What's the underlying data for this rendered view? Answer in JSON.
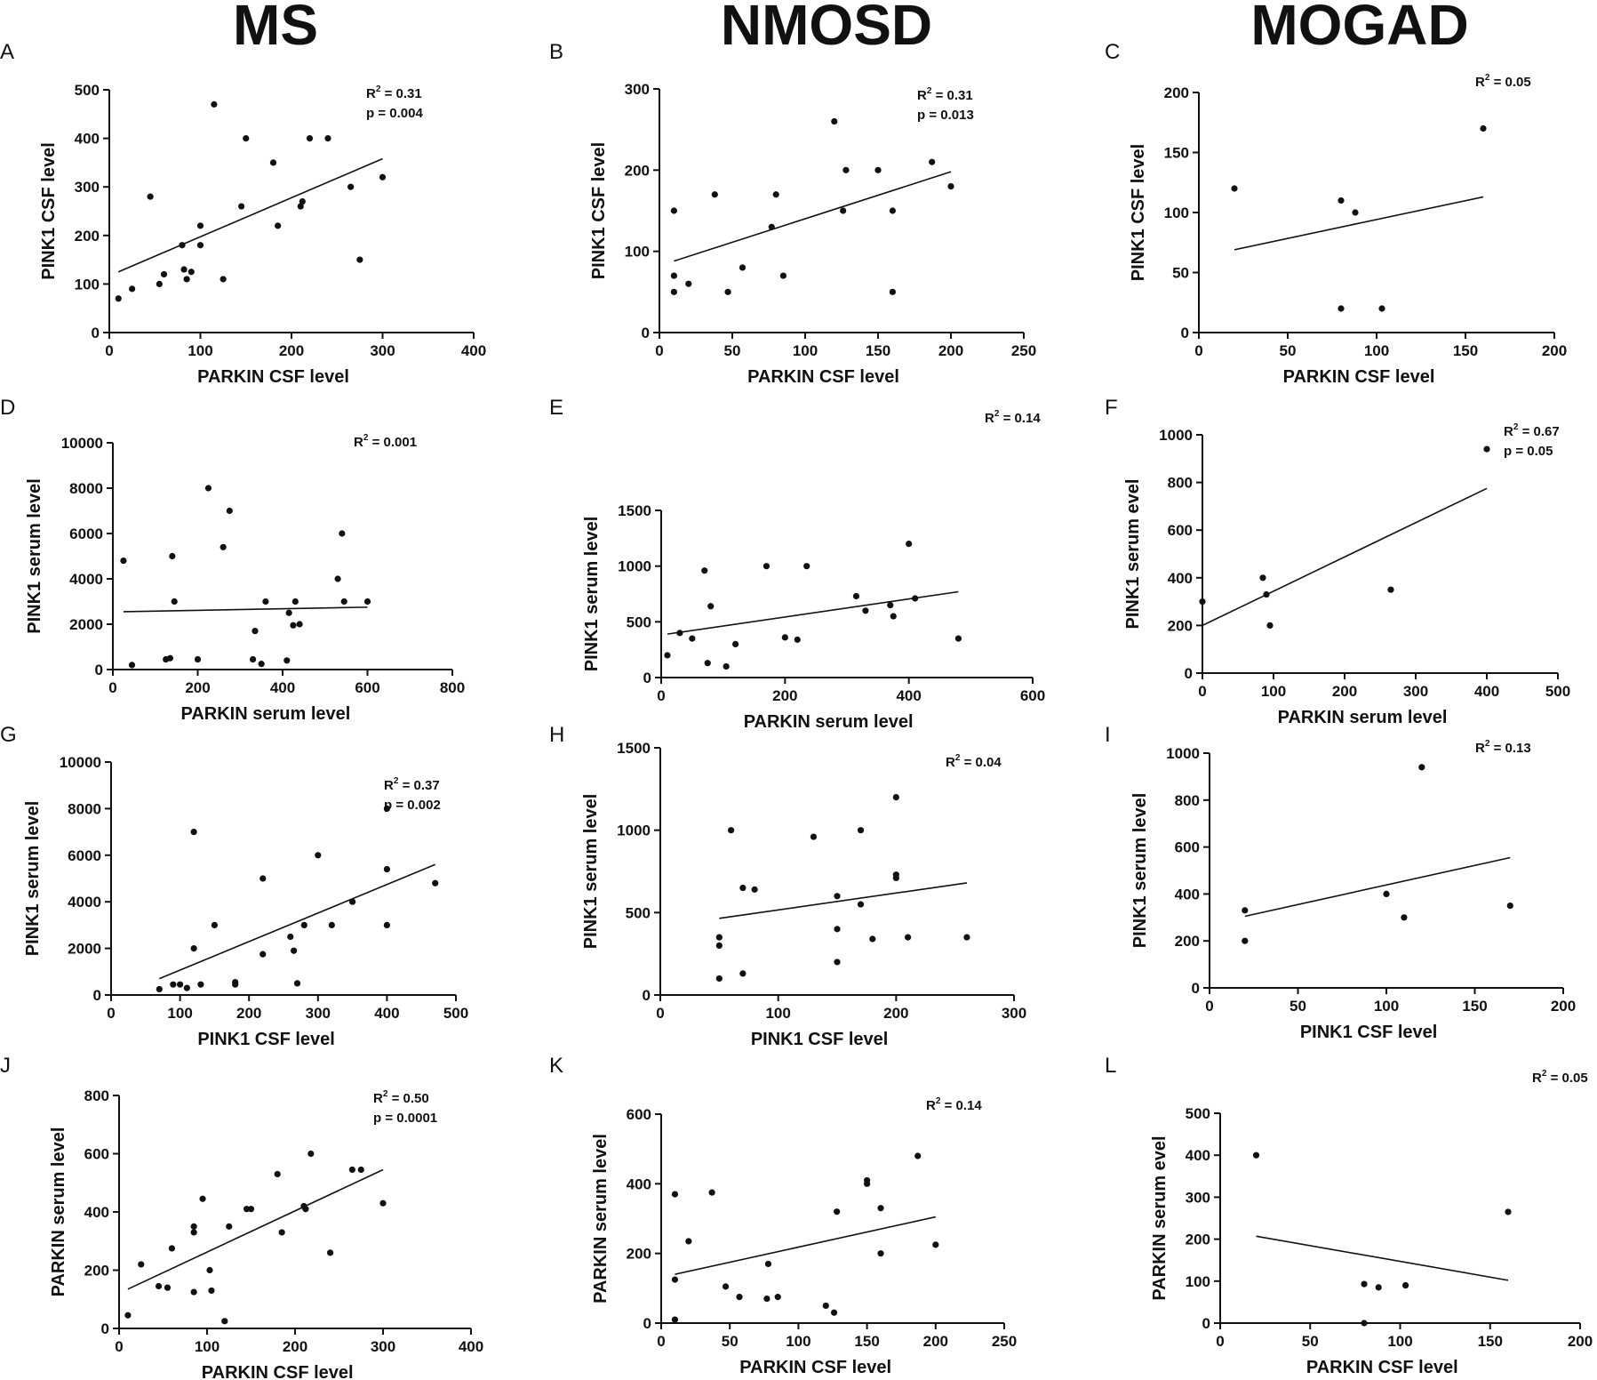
{
  "column_titles": [
    "MS",
    "NMOSD",
    "MOGAD"
  ],
  "chart_data": [
    {
      "id": "A",
      "type": "scatter",
      "xlabel": "PARKIN CSF level",
      "ylabel": "PINK1 CSF level",
      "xlim": [
        0,
        400
      ],
      "ylim": [
        0,
        500
      ],
      "xticks": [
        0,
        100,
        200,
        300,
        400
      ],
      "yticks": [
        0,
        100,
        200,
        300,
        400,
        500
      ],
      "stats": [
        "R2 = 0.31",
        "p = 0.004"
      ],
      "fit": [
        [
          10,
          125
        ],
        [
          300,
          358
        ]
      ],
      "points": [
        [
          10,
          70
        ],
        [
          25,
          90
        ],
        [
          45,
          280
        ],
        [
          55,
          100
        ],
        [
          60,
          120
        ],
        [
          80,
          180
        ],
        [
          82,
          130
        ],
        [
          85,
          110
        ],
        [
          90,
          125
        ],
        [
          100,
          180
        ],
        [
          100,
          220
        ],
        [
          115,
          470
        ],
        [
          125,
          110
        ],
        [
          145,
          260
        ],
        [
          150,
          400
        ],
        [
          180,
          350
        ],
        [
          185,
          220
        ],
        [
          210,
          260
        ],
        [
          212,
          270
        ],
        [
          220,
          400
        ],
        [
          240,
          400
        ],
        [
          265,
          300
        ],
        [
          275,
          150
        ],
        [
          300,
          320
        ]
      ]
    },
    {
      "id": "B",
      "type": "scatter",
      "xlabel": "PARKIN CSF level",
      "ylabel": "PINK1 CSF level",
      "xlim": [
        0,
        250
      ],
      "ylim": [
        0,
        300
      ],
      "xticks": [
        0,
        50,
        100,
        150,
        200,
        250
      ],
      "yticks": [
        0,
        100,
        200,
        300
      ],
      "stats": [
        "R2 = 0.31",
        "p = 0.013"
      ],
      "fit": [
        [
          10,
          88
        ],
        [
          200,
          198
        ]
      ],
      "points": [
        [
          10,
          50
        ],
        [
          10,
          70
        ],
        [
          10,
          150
        ],
        [
          20,
          60
        ],
        [
          38,
          170
        ],
        [
          47,
          50
        ],
        [
          57,
          80
        ],
        [
          77,
          130
        ],
        [
          80,
          170
        ],
        [
          85,
          70
        ],
        [
          120,
          260
        ],
        [
          126,
          150
        ],
        [
          128,
          200
        ],
        [
          150,
          200
        ],
        [
          160,
          50
        ],
        [
          160,
          150
        ],
        [
          187,
          210
        ],
        [
          200,
          180
        ]
      ]
    },
    {
      "id": "C",
      "type": "scatter",
      "xlabel": "PARKIN CSF level",
      "ylabel": "PINK1 CSF level",
      "xlim": [
        0,
        200
      ],
      "ylim": [
        0,
        200
      ],
      "xticks": [
        0,
        50,
        100,
        150,
        200
      ],
      "yticks": [
        0,
        50,
        100,
        150,
        200
      ],
      "stats": [
        "R2 = 0.05"
      ],
      "fit": [
        [
          20,
          69
        ],
        [
          160,
          113
        ]
      ],
      "points": [
        [
          20,
          120
        ],
        [
          80,
          110
        ],
        [
          80,
          20
        ],
        [
          88,
          100
        ],
        [
          103,
          20
        ],
        [
          160,
          170
        ]
      ]
    },
    {
      "id": "D",
      "type": "scatter",
      "xlabel": "PARKIN serum level",
      "ylabel": "PINK1 serum level",
      "xlim": [
        0,
        800
      ],
      "ylim": [
        0,
        10000
      ],
      "xticks": [
        0,
        200,
        400,
        600,
        800
      ],
      "yticks": [
        0,
        2000,
        4000,
        6000,
        8000,
        10000
      ],
      "stats": [
        "R2 = 0.001"
      ],
      "fit": [
        [
          25,
          2550
        ],
        [
          600,
          2750
        ]
      ],
      "points": [
        [
          25,
          4800
        ],
        [
          45,
          200
        ],
        [
          125,
          450
        ],
        [
          135,
          500
        ],
        [
          140,
          5000
        ],
        [
          145,
          3000
        ],
        [
          200,
          450
        ],
        [
          225,
          8000
        ],
        [
          260,
          5400
        ],
        [
          275,
          7000
        ],
        [
          330,
          450
        ],
        [
          335,
          1700
        ],
        [
          350,
          250
        ],
        [
          360,
          3000
        ],
        [
          410,
          400
        ],
        [
          415,
          2500
        ],
        [
          425,
          1950
        ],
        [
          430,
          3000
        ],
        [
          440,
          2000
        ],
        [
          530,
          4000
        ],
        [
          540,
          6000
        ],
        [
          545,
          3000
        ],
        [
          600,
          3000
        ]
      ]
    },
    {
      "id": "E",
      "type": "scatter",
      "xlabel": "PARKIN serum level",
      "ylabel": "PINK1 serum level",
      "xlim": [
        0,
        600
      ],
      "ylim": [
        0,
        1500
      ],
      "xticks": [
        0,
        200,
        400,
        600
      ],
      "yticks": [
        0,
        500,
        1000,
        1500
      ],
      "stats": [
        "R2 = 0.14"
      ],
      "fit": [
        [
          10,
          390
        ],
        [
          480,
          770
        ]
      ],
      "points": [
        [
          10,
          200
        ],
        [
          30,
          400
        ],
        [
          50,
          350
        ],
        [
          70,
          960
        ],
        [
          75,
          130
        ],
        [
          80,
          640
        ],
        [
          105,
          100
        ],
        [
          120,
          300
        ],
        [
          170,
          1000
        ],
        [
          200,
          360
        ],
        [
          220,
          340
        ],
        [
          235,
          1000
        ],
        [
          315,
          730
        ],
        [
          330,
          600
        ],
        [
          370,
          650
        ],
        [
          375,
          550
        ],
        [
          400,
          1200
        ],
        [
          410,
          710
        ],
        [
          480,
          350
        ]
      ]
    },
    {
      "id": "F",
      "type": "scatter",
      "xlabel": "PARKIN serum level",
      "ylabel": "PINK1 serum evel",
      "xlim": [
        0,
        500
      ],
      "ylim": [
        0,
        1000
      ],
      "xticks": [
        0,
        100,
        200,
        300,
        400,
        500
      ],
      "yticks": [
        0,
        200,
        400,
        600,
        800,
        1000
      ],
      "stats": [
        "R2 = 0.67",
        "p = 0.05"
      ],
      "fit": [
        [
          0,
          200
        ],
        [
          400,
          775
        ]
      ],
      "points": [
        [
          0,
          300
        ],
        [
          85,
          400
        ],
        [
          90,
          330
        ],
        [
          95,
          200
        ],
        [
          265,
          350
        ],
        [
          400,
          940
        ]
      ]
    },
    {
      "id": "G",
      "type": "scatter",
      "xlabel": "PINK1 CSF level",
      "ylabel": "PINK1 serum level",
      "xlim": [
        0,
        500
      ],
      "ylim": [
        0,
        10000
      ],
      "xticks": [
        0,
        100,
        200,
        300,
        400,
        500
      ],
      "yticks": [
        0,
        2000,
        4000,
        6000,
        8000,
        10000
      ],
      "stats": [
        "R2 = 0.37",
        "p = 0.002"
      ],
      "fit": [
        [
          70,
          700
        ],
        [
          470,
          5600
        ]
      ],
      "points": [
        [
          70,
          250
        ],
        [
          90,
          450
        ],
        [
          100,
          450
        ],
        [
          110,
          300
        ],
        [
          120,
          2000
        ],
        [
          120,
          7000
        ],
        [
          130,
          450
        ],
        [
          150,
          3000
        ],
        [
          180,
          450
        ],
        [
          180,
          550
        ],
        [
          220,
          1750
        ],
        [
          220,
          5000
        ],
        [
          260,
          2500
        ],
        [
          265,
          1900
        ],
        [
          270,
          500
        ],
        [
          280,
          3000
        ],
        [
          300,
          6000
        ],
        [
          320,
          3000
        ],
        [
          350,
          4000
        ],
        [
          400,
          8000
        ],
        [
          400,
          5400
        ],
        [
          400,
          3000
        ],
        [
          470,
          4800
        ]
      ]
    },
    {
      "id": "H",
      "type": "scatter",
      "xlabel": "PINK1 CSF level",
      "ylabel": "PINK1 serum level",
      "xlim": [
        0,
        300
      ],
      "ylim": [
        0,
        1500
      ],
      "xticks": [
        0,
        100,
        200,
        300
      ],
      "yticks": [
        0,
        500,
        1000,
        1500
      ],
      "stats": [
        "R2 = 0.04"
      ],
      "fit": [
        [
          50,
          465
        ],
        [
          260,
          680
        ]
      ],
      "points": [
        [
          50,
          100
        ],
        [
          50,
          300
        ],
        [
          50,
          350
        ],
        [
          60,
          1000
        ],
        [
          70,
          130
        ],
        [
          70,
          650
        ],
        [
          80,
          640
        ],
        [
          130,
          960
        ],
        [
          150,
          200
        ],
        [
          150,
          400
        ],
        [
          150,
          600
        ],
        [
          170,
          550
        ],
        [
          170,
          1000
        ],
        [
          180,
          340
        ],
        [
          200,
          1200
        ],
        [
          200,
          710
        ],
        [
          200,
          730
        ],
        [
          210,
          350
        ],
        [
          260,
          350
        ]
      ]
    },
    {
      "id": "I",
      "type": "scatter",
      "xlabel": "PINK1 CSF level",
      "ylabel": "PINK1 serum level",
      "xlim": [
        0,
        200
      ],
      "ylim": [
        0,
        1000
      ],
      "xticks": [
        0,
        50,
        100,
        150,
        200
      ],
      "yticks": [
        0,
        200,
        400,
        600,
        800,
        1000
      ],
      "stats": [
        "R2 = 0.13"
      ],
      "fit": [
        [
          20,
          305
        ],
        [
          170,
          555
        ]
      ],
      "points": [
        [
          20,
          200
        ],
        [
          20,
          330
        ],
        [
          100,
          400
        ],
        [
          110,
          300
        ],
        [
          120,
          940
        ],
        [
          170,
          350
        ]
      ]
    },
    {
      "id": "J",
      "type": "scatter",
      "xlabel": "PARKIN CSF level",
      "ylabel": "PARKIN serum level",
      "xlim": [
        0,
        400
      ],
      "ylim": [
        0,
        800
      ],
      "xticks": [
        0,
        100,
        200,
        300,
        400
      ],
      "yticks": [
        0,
        200,
        400,
        600,
        800
      ],
      "stats": [
        "R2 = 0.50",
        "p = 0.0001"
      ],
      "fit": [
        [
          10,
          135
        ],
        [
          300,
          545
        ]
      ],
      "points": [
        [
          10,
          45
        ],
        [
          25,
          220
        ],
        [
          45,
          145
        ],
        [
          55,
          140
        ],
        [
          60,
          275
        ],
        [
          85,
          125
        ],
        [
          85,
          330
        ],
        [
          85,
          350
        ],
        [
          95,
          445
        ],
        [
          103,
          200
        ],
        [
          105,
          130
        ],
        [
          120,
          25
        ],
        [
          125,
          350
        ],
        [
          145,
          410
        ],
        [
          150,
          410
        ],
        [
          180,
          530
        ],
        [
          185,
          330
        ],
        [
          210,
          420
        ],
        [
          212,
          410
        ],
        [
          218,
          600
        ],
        [
          240,
          260
        ],
        [
          265,
          545
        ],
        [
          275,
          545
        ],
        [
          300,
          430
        ]
      ]
    },
    {
      "id": "K",
      "type": "scatter",
      "xlabel": "PARKIN CSF level",
      "ylabel": "PARKIN serum level",
      "xlim": [
        0,
        250
      ],
      "ylim": [
        0,
        600
      ],
      "xticks": [
        0,
        50,
        100,
        150,
        200,
        250
      ],
      "yticks": [
        0,
        200,
        400,
        600
      ],
      "stats": [
        "R2 = 0.14"
      ],
      "fit": [
        [
          10,
          140
        ],
        [
          200,
          305
        ]
      ],
      "points": [
        [
          10,
          10
        ],
        [
          10,
          125
        ],
        [
          10,
          370
        ],
        [
          20,
          235
        ],
        [
          37,
          375
        ],
        [
          47,
          105
        ],
        [
          57,
          75
        ],
        [
          77,
          70
        ],
        [
          78,
          170
        ],
        [
          85,
          75
        ],
        [
          120,
          50
        ],
        [
          126,
          30
        ],
        [
          128,
          320
        ],
        [
          150,
          400
        ],
        [
          150,
          410
        ],
        [
          160,
          330
        ],
        [
          160,
          200
        ],
        [
          187,
          480
        ],
        [
          200,
          225
        ]
      ]
    },
    {
      "id": "L",
      "type": "scatter",
      "xlabel": "PARKIN CSF level",
      "ylabel": "PARKIN serum evel",
      "xlim": [
        0,
        200
      ],
      "ylim": [
        0,
        500
      ],
      "xticks": [
        0,
        50,
        100,
        150,
        200
      ],
      "yticks": [
        0,
        100,
        200,
        300,
        400,
        500
      ],
      "stats": [
        "R2 = 0.05"
      ],
      "fit": [
        [
          20,
          207
        ],
        [
          160,
          102
        ]
      ],
      "points": [
        [
          20,
          400
        ],
        [
          80,
          93
        ],
        [
          80,
          0
        ],
        [
          88,
          85
        ],
        [
          103,
          90
        ],
        [
          160,
          265
        ]
      ]
    }
  ]
}
